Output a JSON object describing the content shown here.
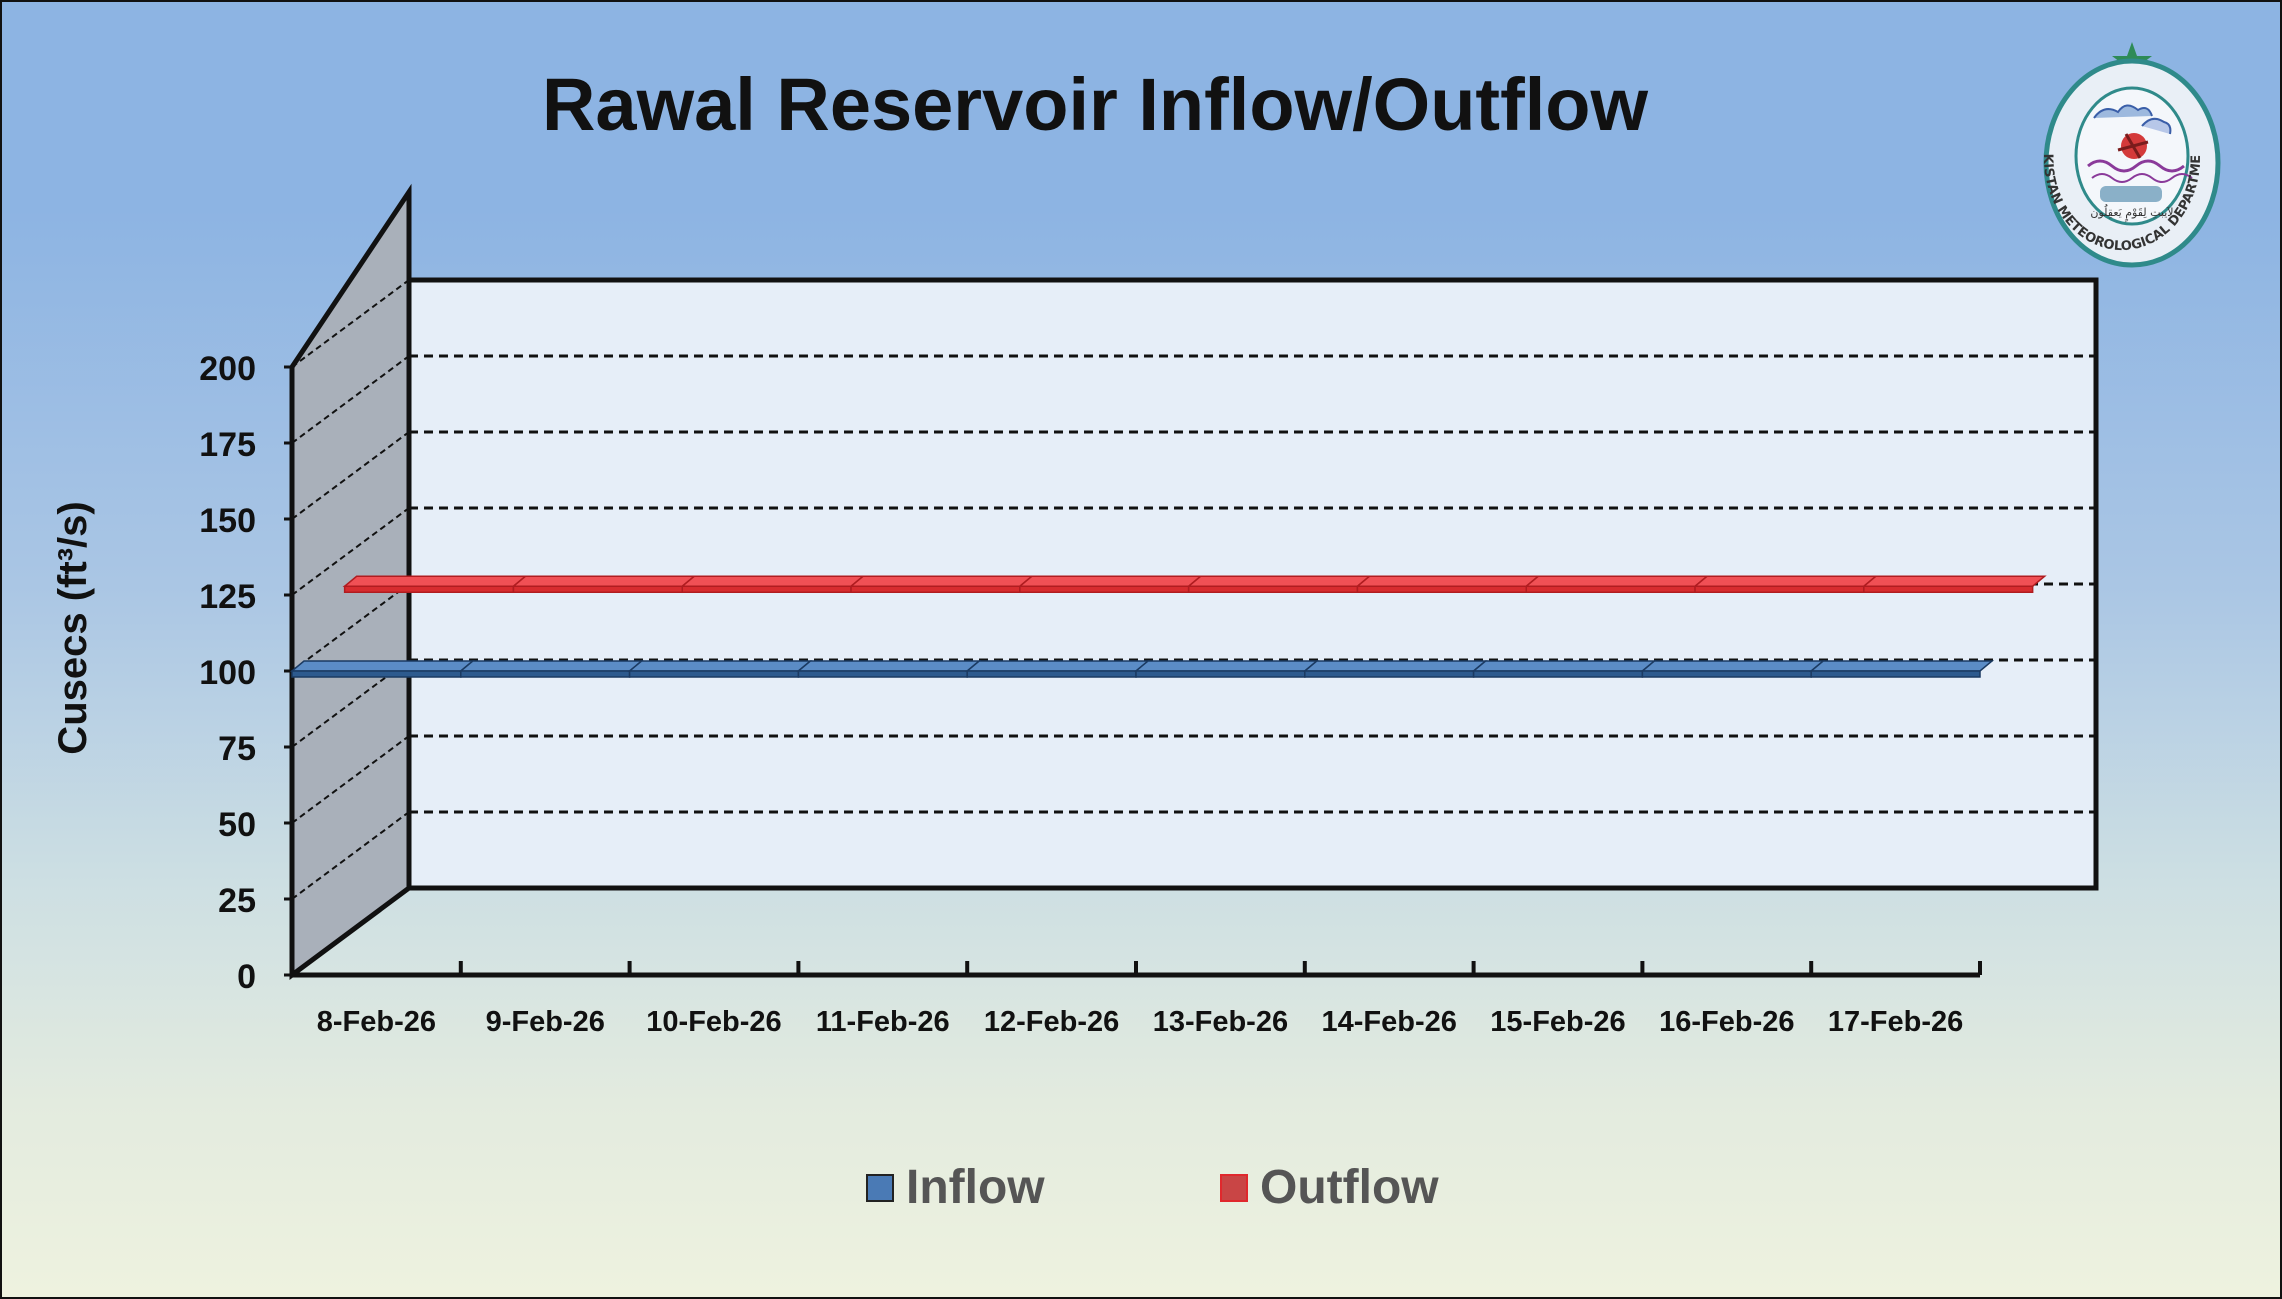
{
  "chart_data": {
    "type": "line",
    "title": "Rawal Reservoir Inflow/Outflow",
    "ylabel": "Cusecs (ft³/s)",
    "xlabel": "",
    "categories": [
      "8-Feb-26",
      "9-Feb-26",
      "10-Feb-26",
      "11-Feb-26",
      "12-Feb-26",
      "13-Feb-26",
      "14-Feb-26",
      "15-Feb-26",
      "16-Feb-26",
      "17-Feb-26"
    ],
    "series": [
      {
        "name": "Inflow",
        "values": [
          100,
          100,
          100,
          100,
          100,
          100,
          100,
          100,
          100,
          100
        ],
        "color": "#4a7ab5"
      },
      {
        "name": "Outflow",
        "values": [
          115,
          115,
          115,
          115,
          115,
          115,
          115,
          115,
          115,
          115
        ],
        "color": "#e8353a"
      }
    ],
    "ylim": [
      0,
      200
    ],
    "yticks": [
      0,
      25,
      50,
      75,
      100,
      125,
      150,
      175,
      200
    ],
    "grid": true,
    "legend_position": "bottom"
  },
  "logo": {
    "ring_text": "PAKISTAN METEOROLOGICAL DEPARTMENT",
    "inner_text": "لاَیبتِ لِقَوْمٍ یَعقِلُون",
    "star_color": "#2e8b57"
  }
}
